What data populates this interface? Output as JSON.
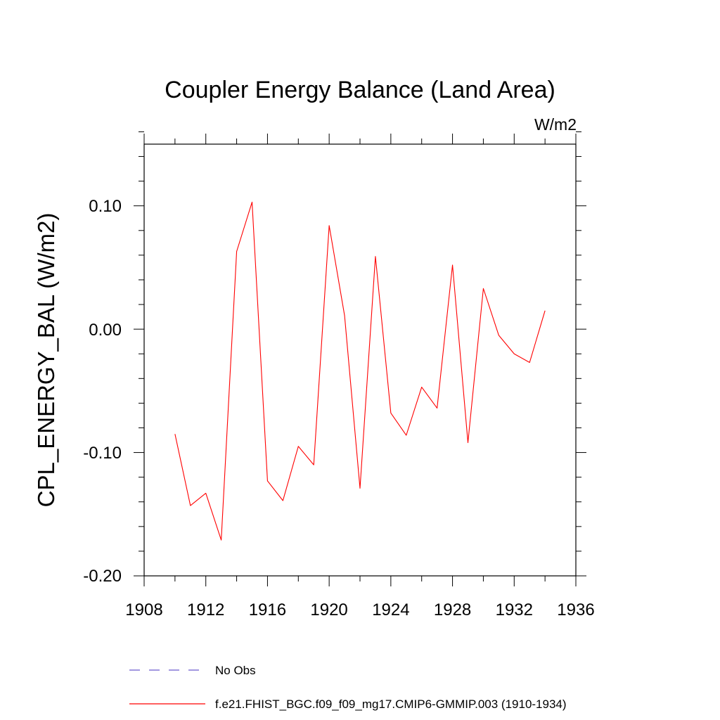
{
  "chart_data": {
    "type": "line",
    "title": "Coupler Energy Balance (Land Area)",
    "units": "W/m2",
    "ylabel": "CPL_ENERGY_BAL  (W/m2)",
    "xlabel": "",
    "xlim": [
      1908,
      1936
    ],
    "ylim": [
      -0.2,
      0.15
    ],
    "x_ticks": [
      "1908",
      "1912",
      "1916",
      "1920",
      "1924",
      "1928",
      "1932",
      "1936"
    ],
    "y_ticks": [
      "0.10",
      "0.00",
      "-0.10",
      "-0.20"
    ],
    "grid": false,
    "legend_placement": "bottom",
    "series": [
      {
        "name": "f.e21.FHIST_BGC.f09_f09_mg17.CMIP6-GMMIP.003 (1910-1934)",
        "color": "#ff0000",
        "style": "solid",
        "x": [
          1910,
          1911,
          1912,
          1913,
          1914,
          1915,
          1916,
          1917,
          1918,
          1919,
          1920,
          1921,
          1922,
          1923,
          1924,
          1925,
          1926,
          1927,
          1928,
          1929,
          1930,
          1931,
          1932,
          1933,
          1934
        ],
        "values": [
          -0.085,
          -0.143,
          -0.133,
          -0.171,
          0.063,
          0.103,
          -0.123,
          -0.139,
          -0.095,
          -0.11,
          0.084,
          0.011,
          -0.129,
          0.059,
          -0.068,
          -0.086,
          -0.047,
          -0.064,
          0.052,
          -0.092,
          0.033,
          -0.005,
          -0.02,
          -0.027,
          0.015
        ]
      }
    ],
    "legend": [
      {
        "label": "No Obs",
        "color": "#6a5acd",
        "style": "dashed"
      },
      {
        "label": "f.e21.FHIST_BGC.f09_f09_mg17.CMIP6-GMMIP.003 (1910-1934)",
        "color": "#ff0000",
        "style": "solid"
      }
    ]
  }
}
